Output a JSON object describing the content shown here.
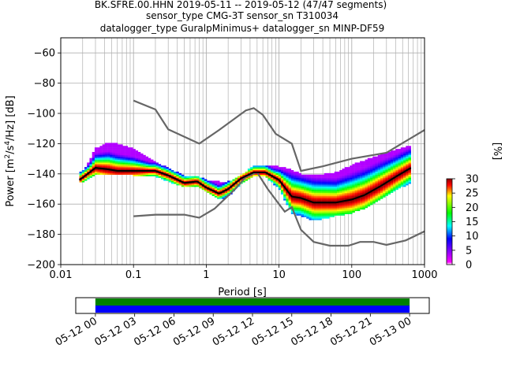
{
  "chart_data": {
    "type": "heatmap",
    "title_lines": [
      "BK.SFRE.00.HHN   2019-05-11 -- 2019-05-12  (47/47 segments)",
      "sensor_type CMG-3T sensor_sn T310034",
      "datalogger_type GuralpMinimus+ datalogger_sn MINP-DF59"
    ],
    "xlabel": "Period [s]",
    "ylabel": "Power [m$^2$/s$^4$/Hz] [dB]",
    "ylabel_parts": {
      "main": "Power [m",
      "sup1": "2",
      "mid": "/s",
      "sup2": "4",
      "end": "/Hz] [dB]"
    },
    "xscale": "log",
    "xlim": [
      0.01,
      1000
    ],
    "ylim": [
      -200,
      -50
    ],
    "x_ticks": [
      {
        "value": 0.01,
        "label": "0.01"
      },
      {
        "value": 0.1,
        "label": "0.1"
      },
      {
        "value": 1,
        "label": "1"
      },
      {
        "value": 10,
        "label": "10"
      },
      {
        "value": 100,
        "label": "100"
      },
      {
        "value": 1000,
        "label": "1000"
      }
    ],
    "y_ticks": [
      {
        "value": -60,
        "label": "−60"
      },
      {
        "value": -80,
        "label": "−80"
      },
      {
        "value": -100,
        "label": "−100"
      },
      {
        "value": -120,
        "label": "−120"
      },
      {
        "value": -140,
        "label": "−140"
      },
      {
        "value": -160,
        "label": "−160"
      },
      {
        "value": -180,
        "label": "−180"
      },
      {
        "value": -200,
        "label": "−200"
      }
    ],
    "grid": true,
    "colorbar": {
      "label": "[%]",
      "range": [
        0,
        30
      ],
      "ticks": [
        {
          "value": 0,
          "label": "0"
        },
        {
          "value": 5,
          "label": "5"
        },
        {
          "value": 10,
          "label": "10"
        },
        {
          "value": 15,
          "label": "15"
        },
        {
          "value": 20,
          "label": "20"
        },
        {
          "value": 25,
          "label": "25"
        },
        {
          "value": 30,
          "label": "30"
        }
      ],
      "colors": [
        "#ffffff",
        "#ff00ff",
        "#0000ff",
        "#00ffff",
        "#00ff00",
        "#ffff00",
        "#ff0000",
        "#880000"
      ]
    },
    "nhnm": [
      [
        0.1,
        -168
      ],
      [
        0.2,
        -167
      ],
      [
        0.5,
        -167
      ],
      [
        0.8,
        -169
      ],
      [
        1.3,
        -163
      ],
      [
        2.5,
        -150
      ],
      [
        3.5,
        -142
      ],
      [
        5,
        -139
      ],
      [
        7,
        -150
      ],
      [
        10,
        -160
      ],
      [
        12,
        -165
      ],
      [
        15,
        -162
      ],
      [
        20,
        -177
      ],
      [
        30,
        -185
      ],
      [
        50,
        -187.5
      ],
      [
        90,
        -187.5
      ],
      [
        130,
        -185
      ],
      [
        200,
        -185
      ],
      [
        300,
        -187
      ],
      [
        550,
        -184
      ],
      [
        1000,
        -178
      ]
    ],
    "nlnm": [
      [
        0.1,
        -91.5
      ],
      [
        0.2,
        -97.4
      ],
      [
        0.3,
        -110.5
      ],
      [
        0.8,
        -120
      ],
      [
        1.5,
        -111
      ],
      [
        3.5,
        -98
      ],
      [
        4.5,
        -96.5
      ],
      [
        6,
        -101
      ],
      [
        9,
        -113.5
      ],
      [
        15,
        -120
      ],
      [
        20,
        -138
      ],
      [
        40,
        -135
      ],
      [
        100,
        -130
      ],
      [
        300,
        -126
      ],
      [
        1000,
        -111
      ]
    ],
    "mean_curve": [
      [
        0.018,
        -144
      ],
      [
        0.022,
        -141
      ],
      [
        0.03,
        -136
      ],
      [
        0.045,
        -137
      ],
      [
        0.06,
        -138
      ],
      [
        0.1,
        -138
      ],
      [
        0.2,
        -138
      ],
      [
        0.3,
        -141
      ],
      [
        0.5,
        -146
      ],
      [
        0.75,
        -145
      ],
      [
        1.0,
        -149
      ],
      [
        1.5,
        -153
      ],
      [
        2.0,
        -150
      ],
      [
        3.0,
        -143
      ],
      [
        4.5,
        -139
      ],
      [
        6.5,
        -139
      ],
      [
        10,
        -144
      ],
      [
        15,
        -155
      ],
      [
        20,
        -156
      ],
      [
        30,
        -159
      ],
      [
        60,
        -159
      ],
      [
        100,
        -157
      ],
      [
        150,
        -154
      ],
      [
        250,
        -148
      ],
      [
        400,
        -142
      ],
      [
        650,
        -136
      ]
    ],
    "psd_spread": [
      [
        0.018,
        -140,
        -145
      ],
      [
        0.022,
        -137,
        -144
      ],
      [
        0.03,
        -124,
        -140
      ],
      [
        0.045,
        -120,
        -140
      ],
      [
        0.06,
        -121,
        -140
      ],
      [
        0.1,
        -124,
        -140
      ],
      [
        0.2,
        -133,
        -141
      ],
      [
        0.3,
        -137,
        -144
      ],
      [
        0.5,
        -142,
        -148
      ],
      [
        0.75,
        -142,
        -147
      ],
      [
        1.0,
        -145,
        -151
      ],
      [
        1.5,
        -146,
        -156
      ],
      [
        2.0,
        -146,
        -154
      ],
      [
        3.0,
        -142,
        -146
      ],
      [
        4.5,
        -135,
        -141
      ],
      [
        6.5,
        -135,
        -141
      ],
      [
        10,
        -136,
        -149
      ],
      [
        15,
        -138,
        -165
      ],
      [
        20,
        -141,
        -167
      ],
      [
        30,
        -142,
        -170
      ],
      [
        60,
        -140,
        -167
      ],
      [
        100,
        -135,
        -165
      ],
      [
        150,
        -132,
        -162
      ],
      [
        250,
        -128,
        -156
      ],
      [
        400,
        -125,
        -150
      ],
      [
        650,
        -122,
        -145
      ]
    ],
    "time_axis": {
      "ticks": [
        "05-12 00",
        "05-12 03",
        "05-12 06",
        "05-12 09",
        "05-12 12",
        "05-12 15",
        "05-12 18",
        "05-12 21",
        "05-13 00"
      ],
      "data_start_tick": 0,
      "data_end_tick": 8,
      "span_ticks": [
        -0.5,
        8.5
      ],
      "bands": [
        {
          "name": "",
          "color": "#008000"
        },
        {
          "name": "",
          "color": "#0000ff"
        }
      ]
    }
  }
}
